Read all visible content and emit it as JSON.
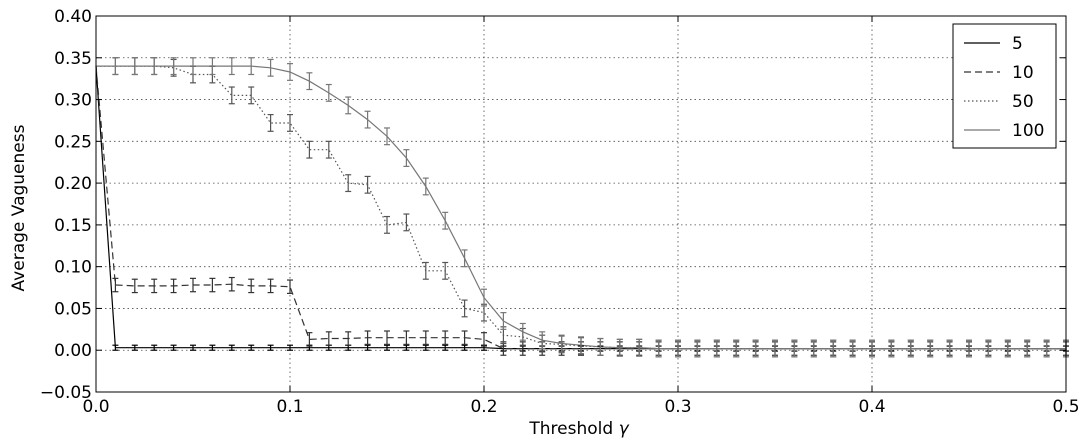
{
  "chart_data": {
    "type": "line",
    "xlabel": "Threshold",
    "xlabel_symbol": "γ",
    "ylabel": "Average Vagueness",
    "xlim": [
      0.0,
      0.5
    ],
    "ylim": [
      -0.05,
      0.4
    ],
    "grid": true,
    "legend_position": "top-right",
    "x_tick_labels": [
      "0.0",
      "0.1",
      "0.2",
      "0.3",
      "0.4",
      "0.5"
    ],
    "y_tick_labels": [
      "−0.05",
      "0.00",
      "0.05",
      "0.10",
      "0.15",
      "0.20",
      "0.25",
      "0.30",
      "0.35",
      "0.40"
    ],
    "series": [
      {
        "name": "5",
        "style": "solid",
        "color": "#000000",
        "x": [
          0.0,
          0.01,
          0.02,
          0.03,
          0.04,
          0.05,
          0.06,
          0.07,
          0.08,
          0.09,
          0.1,
          0.11,
          0.12,
          0.13,
          0.14,
          0.15,
          0.16,
          0.17,
          0.18,
          0.19,
          0.2,
          0.21,
          0.22,
          0.23,
          0.24,
          0.25,
          0.26,
          0.27,
          0.28,
          0.29,
          0.3,
          0.31,
          0.32,
          0.33,
          0.34,
          0.35,
          0.36,
          0.37,
          0.38,
          0.39,
          0.4,
          0.41,
          0.42,
          0.43,
          0.44,
          0.45,
          0.46,
          0.47,
          0.48,
          0.49,
          0.5
        ],
        "y": [
          0.34,
          0.003,
          0.003,
          0.003,
          0.003,
          0.003,
          0.003,
          0.003,
          0.003,
          0.003,
          0.003,
          0.003,
          0.003,
          0.003,
          0.003,
          0.003,
          0.003,
          0.003,
          0.003,
          0.003,
          0.003,
          0.002,
          0.002,
          0.002,
          0.002,
          0.002,
          0.002,
          0.002,
          0.002,
          0.002,
          0.002,
          0.002,
          0.002,
          0.002,
          0.002,
          0.002,
          0.002,
          0.002,
          0.002,
          0.002,
          0.002,
          0.002,
          0.002,
          0.002,
          0.002,
          0.002,
          0.002,
          0.002,
          0.002,
          0.002,
          0.002
        ],
        "err": 0.003
      },
      {
        "name": "10",
        "style": "dashed",
        "color": "#333333",
        "x": [
          0.0,
          0.01,
          0.02,
          0.03,
          0.04,
          0.05,
          0.06,
          0.07,
          0.08,
          0.09,
          0.1,
          0.11,
          0.12,
          0.13,
          0.14,
          0.15,
          0.16,
          0.17,
          0.18,
          0.19,
          0.2,
          0.21,
          0.22,
          0.23,
          0.24,
          0.25,
          0.26,
          0.27,
          0.28,
          0.29,
          0.3,
          0.31,
          0.32,
          0.33,
          0.34,
          0.35,
          0.36,
          0.37,
          0.38,
          0.39,
          0.4,
          0.41,
          0.42,
          0.43,
          0.44,
          0.45,
          0.46,
          0.47,
          0.48,
          0.49,
          0.5
        ],
        "y": [
          0.34,
          0.078,
          0.077,
          0.077,
          0.077,
          0.078,
          0.078,
          0.079,
          0.077,
          0.077,
          0.076,
          0.013,
          0.014,
          0.014,
          0.015,
          0.015,
          0.015,
          0.015,
          0.015,
          0.015,
          0.013,
          0.002,
          0.002,
          0.002,
          0.002,
          0.002,
          0.002,
          0.002,
          0.002,
          0.002,
          0.002,
          0.002,
          0.002,
          0.002,
          0.002,
          0.002,
          0.002,
          0.002,
          0.002,
          0.002,
          0.002,
          0.002,
          0.002,
          0.002,
          0.002,
          0.002,
          0.002,
          0.002,
          0.002,
          0.002,
          0.002
        ],
        "err": 0.008
      },
      {
        "name": "50",
        "style": "dotted",
        "color": "#555555",
        "x": [
          0.0,
          0.01,
          0.02,
          0.03,
          0.04,
          0.05,
          0.06,
          0.07,
          0.08,
          0.09,
          0.1,
          0.11,
          0.12,
          0.13,
          0.14,
          0.15,
          0.16,
          0.17,
          0.18,
          0.19,
          0.2,
          0.21,
          0.22,
          0.23,
          0.24,
          0.25,
          0.26,
          0.27,
          0.28,
          0.29,
          0.3,
          0.31,
          0.32,
          0.33,
          0.34,
          0.35,
          0.36,
          0.37,
          0.38,
          0.39,
          0.4,
          0.41,
          0.42,
          0.43,
          0.44,
          0.45,
          0.46,
          0.47,
          0.48,
          0.49,
          0.5
        ],
        "y": [
          0.34,
          0.34,
          0.34,
          0.34,
          0.338,
          0.33,
          0.33,
          0.305,
          0.305,
          0.272,
          0.272,
          0.24,
          0.24,
          0.2,
          0.198,
          0.15,
          0.153,
          0.095,
          0.095,
          0.05,
          0.045,
          0.018,
          0.016,
          0.008,
          0.007,
          0.005,
          0.004,
          0.003,
          0.003,
          0.002,
          0.002,
          0.002,
          0.002,
          0.002,
          0.002,
          0.002,
          0.002,
          0.002,
          0.002,
          0.002,
          0.002,
          0.002,
          0.002,
          0.002,
          0.002,
          0.002,
          0.002,
          0.002,
          0.002,
          0.002,
          0.002
        ],
        "err": 0.01
      },
      {
        "name": "100",
        "style": "solid",
        "color": "#777777",
        "x": [
          0.0,
          0.01,
          0.02,
          0.03,
          0.04,
          0.05,
          0.06,
          0.07,
          0.08,
          0.09,
          0.1,
          0.11,
          0.12,
          0.13,
          0.14,
          0.15,
          0.16,
          0.17,
          0.18,
          0.19,
          0.2,
          0.21,
          0.22,
          0.23,
          0.24,
          0.25,
          0.26,
          0.27,
          0.28,
          0.29,
          0.3,
          0.31,
          0.32,
          0.33,
          0.34,
          0.35,
          0.36,
          0.37,
          0.38,
          0.39,
          0.4,
          0.41,
          0.42,
          0.43,
          0.44,
          0.45,
          0.46,
          0.47,
          0.48,
          0.49,
          0.5
        ],
        "y": [
          0.34,
          0.34,
          0.34,
          0.34,
          0.34,
          0.34,
          0.34,
          0.34,
          0.34,
          0.338,
          0.333,
          0.322,
          0.308,
          0.293,
          0.276,
          0.256,
          0.23,
          0.196,
          0.155,
          0.11,
          0.063,
          0.035,
          0.022,
          0.012,
          0.008,
          0.006,
          0.004,
          0.003,
          0.003,
          0.002,
          0.002,
          0.002,
          0.002,
          0.002,
          0.002,
          0.002,
          0.002,
          0.002,
          0.002,
          0.002,
          0.002,
          0.002,
          0.002,
          0.002,
          0.002,
          0.002,
          0.002,
          0.002,
          0.002,
          0.002,
          0.002
        ],
        "err": 0.01
      }
    ]
  }
}
